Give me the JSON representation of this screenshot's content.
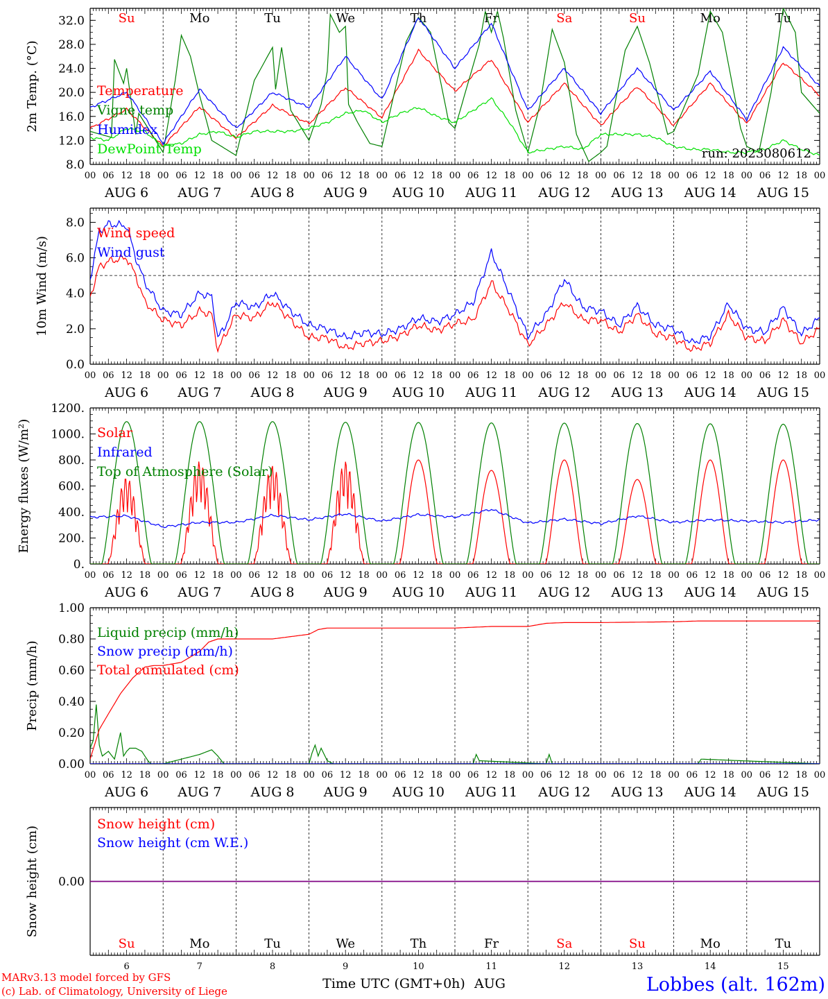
{
  "days": {
    "weekdays": [
      "Su",
      "Mo",
      "Tu",
      "We",
      "Th",
      "Fr",
      "Sa",
      "Su",
      "Mo",
      "Tu"
    ],
    "weekday_colors": [
      "#ff0000",
      "#000000",
      "#000000",
      "#000000",
      "#000000",
      "#000000",
      "#ff0000",
      "#ff0000",
      "#000000",
      "#000000"
    ],
    "month": "AUG",
    "dates": [
      "6",
      "7",
      "8",
      "9",
      "10",
      "11",
      "12",
      "13",
      "14",
      "15"
    ],
    "hour_ticks": [
      "00",
      "06",
      "12",
      "18"
    ],
    "final_tick": "00"
  },
  "x_axis_label": "Time UTC (GMT+0h)",
  "x_axis_month": "AUG",
  "footer": {
    "credit_line1": "MARv3.13 model forced by GFS",
    "credit_line2": "(c) Lab. of Climatology, University of Liege",
    "station": "Lobbes (alt. 162m)"
  },
  "chart_data": [
    {
      "type": "line",
      "ylabel": "2m Temp. (°C)",
      "ylim": [
        8,
        34
      ],
      "y_ticks": [
        "8.0",
        "12.0",
        "16.0",
        "20.0",
        "24.0",
        "28.0",
        "32.0"
      ],
      "annotation": "run: 2023080612",
      "series": [
        {
          "name": "Temperature",
          "color": "#ff0000",
          "x": [
            0,
            12,
            24,
            36,
            48,
            60,
            72,
            84,
            96,
            108,
            120,
            132,
            144,
            156,
            168,
            180,
            192,
            204,
            216,
            228,
            240
          ],
          "y": [
            14.0,
            17.2,
            11.0,
            17.6,
            12.4,
            17.8,
            14.8,
            20.8,
            15.8,
            27.0,
            20.2,
            25.5,
            15.0,
            21.5,
            14.5,
            21.0,
            14.5,
            21.5,
            14.8,
            25.0,
            19.5
          ]
        },
        {
          "name": "Vigne temp",
          "color": "#008000",
          "x": [
            0,
            7,
            8,
            11,
            12,
            15,
            16,
            24,
            28,
            30,
            33,
            36,
            40,
            48,
            54,
            60,
            61,
            63,
            66,
            72,
            76,
            78,
            79,
            82,
            84,
            85,
            88,
            92,
            96,
            104,
            108,
            112,
            116,
            118,
            120,
            128,
            130,
            132,
            134,
            136,
            140,
            144,
            148,
            152,
            156,
            160,
            164,
            168,
            170,
            176,
            180,
            184,
            190,
            192,
            200,
            204,
            208,
            214,
            216,
            220,
            224,
            228,
            232,
            234,
            240
          ],
          "y": [
            13.5,
            12.5,
            25.5,
            21.5,
            24.0,
            13.0,
            16.5,
            10.0,
            22.0,
            29.5,
            26.0,
            19.5,
            12.0,
            9.5,
            22.0,
            27.5,
            20.5,
            27.5,
            17.0,
            12.0,
            18.0,
            23.5,
            33.0,
            30.0,
            31.0,
            18.0,
            15.0,
            11.5,
            11.0,
            28.5,
            32.5,
            30.0,
            20.0,
            15.0,
            14.0,
            28.0,
            33.5,
            30.0,
            33.5,
            29.0,
            17.0,
            10.0,
            18.0,
            30.5,
            25.0,
            13.0,
            8.5,
            10.0,
            11.0,
            27.0,
            31.0,
            25.0,
            13.0,
            13.5,
            23.0,
            33.5,
            30.0,
            14.0,
            11.0,
            10.0,
            20.0,
            34.0,
            30.0,
            20.0,
            16.5
          ]
        },
        {
          "name": "Humidex",
          "color": "#0000ff",
          "x": [
            0,
            12,
            24,
            36,
            48,
            60,
            72,
            84,
            96,
            108,
            120,
            132,
            144,
            156,
            168,
            180,
            192,
            204,
            216,
            228,
            240
          ],
          "y": [
            17.5,
            20.0,
            11.5,
            20.5,
            14.0,
            20.0,
            17.5,
            26.0,
            18.8,
            32.5,
            24.0,
            31.5,
            17.0,
            24.0,
            16.5,
            24.0,
            17.0,
            23.5,
            15.5,
            27.5,
            21.0
          ]
        },
        {
          "name": "DewPoint Temp",
          "color": "#00e000",
          "x": [
            0,
            6,
            12,
            18,
            24,
            30,
            36,
            42,
            48,
            54,
            60,
            66,
            72,
            78,
            84,
            90,
            96,
            102,
            108,
            114,
            120,
            126,
            132,
            138,
            144,
            150,
            156,
            162,
            168,
            174,
            180,
            186,
            192,
            198,
            204,
            210,
            216,
            222,
            228,
            234,
            240
          ],
          "y": [
            12.5,
            12.0,
            14.0,
            13.5,
            11.0,
            11.5,
            13.0,
            13.5,
            12.5,
            13.5,
            13.5,
            13.5,
            14.0,
            15.0,
            16.5,
            17.0,
            15.0,
            16.5,
            17.5,
            16.0,
            15.0,
            17.0,
            19.0,
            15.0,
            10.0,
            10.5,
            11.0,
            10.5,
            13.0,
            13.0,
            13.0,
            12.5,
            11.0,
            10.5,
            10.5,
            10.0,
            10.0,
            10.5,
            12.0,
            10.5,
            9.5
          ]
        }
      ]
    },
    {
      "type": "line",
      "ylabel": "10m Wind (m/s)",
      "ylim": [
        0,
        8.8
      ],
      "y_ticks": [
        "0.0",
        "2.0",
        "4.0",
        "6.0",
        "8.0"
      ],
      "reference_line": 5.0,
      "series": [
        {
          "name": "Wind speed",
          "color": "#ff0000",
          "x": [
            0,
            3,
            6,
            12,
            15,
            18,
            24,
            30,
            36,
            40,
            42,
            44,
            48,
            54,
            60,
            66,
            72,
            78,
            84,
            90,
            96,
            102,
            108,
            114,
            120,
            126,
            132,
            138,
            144,
            150,
            156,
            162,
            168,
            174,
            180,
            186,
            192,
            198,
            204,
            210,
            216,
            222,
            228,
            234,
            240
          ],
          "y": [
            3.8,
            5.5,
            5.8,
            6.0,
            5.0,
            3.5,
            2.5,
            2.2,
            3.0,
            2.8,
            0.8,
            1.5,
            2.8,
            2.6,
            3.5,
            2.5,
            1.5,
            1.5,
            0.9,
            1.2,
            1.3,
            1.6,
            2.2,
            1.9,
            2.3,
            2.5,
            4.6,
            3.0,
            1.1,
            2.2,
            3.5,
            2.5,
            2.5,
            1.8,
            2.8,
            1.7,
            1.5,
            0.8,
            1.2,
            2.8,
            1.5,
            1.3,
            2.5,
            1.2,
            2.0
          ]
        },
        {
          "name": "Wind gust",
          "color": "#0000ff",
          "x": [
            0,
            3,
            6,
            12,
            15,
            18,
            24,
            30,
            36,
            40,
            42,
            44,
            48,
            54,
            60,
            66,
            72,
            78,
            84,
            90,
            96,
            102,
            108,
            114,
            120,
            126,
            132,
            138,
            144,
            150,
            156,
            162,
            168,
            174,
            180,
            186,
            192,
            198,
            204,
            210,
            216,
            222,
            228,
            234,
            240
          ],
          "y": [
            4.8,
            7.5,
            7.9,
            7.8,
            6.0,
            4.6,
            3.0,
            2.8,
            4.0,
            3.8,
            1.5,
            2.0,
            3.5,
            3.2,
            4.0,
            3.0,
            2.2,
            2.0,
            1.5,
            1.8,
            1.7,
            2.0,
            2.6,
            2.4,
            2.8,
            3.5,
            6.3,
            4.0,
            1.6,
            2.8,
            4.8,
            3.2,
            3.0,
            2.2,
            3.3,
            2.2,
            2.0,
            1.2,
            1.6,
            3.4,
            2.0,
            1.8,
            3.2,
            1.7,
            2.6
          ]
        }
      ]
    },
    {
      "type": "line",
      "ylabel": "Energy fluxes (W/m²)",
      "ylim": [
        0,
        1200
      ],
      "y_ticks": [
        "0.",
        "200.",
        "400.",
        "600.",
        "800.",
        "1000.",
        "1200."
      ],
      "series": [
        {
          "name": "Solar",
          "color": "#ff0000",
          "day_peaks": [
            670,
            790,
            760,
            790,
            800,
            720,
            800,
            650,
            800,
            800
          ]
        },
        {
          "name": "Infrared",
          "color": "#0000ff",
          "x": [
            0,
            12,
            24,
            36,
            48,
            60,
            72,
            84,
            96,
            108,
            120,
            132,
            144,
            156,
            168,
            180,
            192,
            204,
            216,
            228,
            240
          ],
          "y": [
            360,
            370,
            285,
            320,
            320,
            375,
            340,
            385,
            330,
            380,
            360,
            420,
            315,
            345,
            310,
            370,
            320,
            340,
            330,
            320,
            340
          ]
        },
        {
          "name": "Top of Atmosphere (Solar)",
          "color": "#008000",
          "day_peaks": [
            1095,
            1095,
            1095,
            1090,
            1088,
            1085,
            1083,
            1080,
            1078,
            1075
          ]
        }
      ]
    },
    {
      "type": "line",
      "ylabel": "Precip (mm/h)",
      "ylim": [
        0,
        1.0
      ],
      "y_ticks": [
        "0.00",
        "0.20",
        "0.40",
        "0.60",
        "0.80",
        "1.00"
      ],
      "series": [
        {
          "name": "Liquid precip (mm/h)",
          "color": "#008000",
          "x": [
            0,
            1,
            2,
            3,
            4,
            6,
            8,
            10,
            11,
            12,
            13,
            15,
            17,
            19,
            20,
            24,
            30,
            36,
            40,
            42,
            44,
            48,
            72,
            73,
            74,
            75,
            76,
            78,
            80,
            96,
            120,
            126,
            127,
            128,
            150,
            151,
            152,
            200,
            201,
            240
          ],
          "y": [
            0.1,
            0.15,
            0.38,
            0.12,
            0.05,
            0.08,
            0.03,
            0.2,
            0.05,
            0.08,
            0.1,
            0.1,
            0.08,
            0.02,
            0,
            0,
            0.03,
            0.06,
            0.09,
            0.05,
            0,
            0,
            0,
            0.07,
            0.12,
            0.05,
            0.1,
            0.02,
            0,
            0,
            0,
            0,
            0.06,
            0.02,
            0,
            0.06,
            0,
            0,
            0.03,
            0
          ]
        },
        {
          "name": "Snow precip (mm/h)",
          "color": "#0000ff",
          "x": [
            0,
            240
          ],
          "y": [
            0,
            0
          ]
        },
        {
          "name": "Total cumulated (cm)",
          "color": "#ff0000",
          "x": [
            0,
            3,
            6,
            10,
            14,
            18,
            21,
            24,
            30,
            36,
            39,
            42,
            48,
            60,
            72,
            75,
            78,
            96,
            120,
            132,
            144,
            150,
            156,
            168,
            192,
            200,
            240
          ],
          "y": [
            0.03,
            0.22,
            0.32,
            0.45,
            0.55,
            0.62,
            0.63,
            0.63,
            0.65,
            0.72,
            0.78,
            0.8,
            0.8,
            0.8,
            0.83,
            0.86,
            0.87,
            0.87,
            0.87,
            0.88,
            0.88,
            0.9,
            0.905,
            0.905,
            0.91,
            0.915,
            0.915
          ]
        }
      ]
    },
    {
      "type": "line",
      "ylabel": "Snow height (cm)",
      "ylim": [
        -1,
        1
      ],
      "y_ticks": [
        "0.00"
      ],
      "series": [
        {
          "name": "Snow height (cm)",
          "color": "#ff0000",
          "x": [
            0,
            240
          ],
          "y": [
            0,
            0
          ]
        },
        {
          "name": "Snow height (cm W.E.)",
          "color": "#0000ff",
          "x": [
            0,
            240
          ],
          "y": [
            0,
            0
          ]
        }
      ]
    }
  ]
}
